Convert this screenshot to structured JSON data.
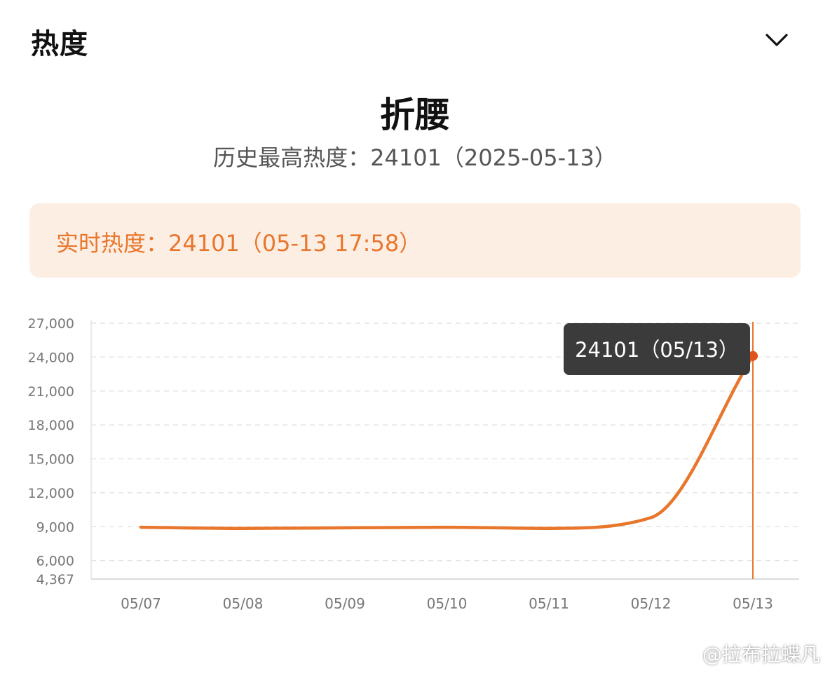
{
  "header": {
    "title": "热度",
    "collapse_icon": "chevron-down-icon"
  },
  "topic": {
    "title": "折腰",
    "peak": "历史最高热度：24101（2025-05-13）"
  },
  "realtime": {
    "text": "实时热度：24101（05-13 17:58）"
  },
  "colors": {
    "accent": "#e8762c",
    "tooltip_bg": "#3b3b3b",
    "realtime_bg": "#fdeee4"
  },
  "chart_data": {
    "type": "line",
    "x": [
      "05/07",
      "05/08",
      "05/09",
      "05/10",
      "05/11",
      "05/12",
      "05/13"
    ],
    "y_ticks": [
      27000,
      24000,
      21000,
      18000,
      15000,
      12000,
      9000,
      6000,
      4367
    ],
    "ylim": [
      4367,
      27000
    ],
    "grid": true,
    "series": [
      {
        "values": [
          8950,
          8850,
          8900,
          8950,
          8850,
          9800,
          24101
        ]
      }
    ],
    "tooltip": {
      "text": "24101（05/13）",
      "index": 6
    }
  },
  "watermark": "@拉布拉蝶凡"
}
